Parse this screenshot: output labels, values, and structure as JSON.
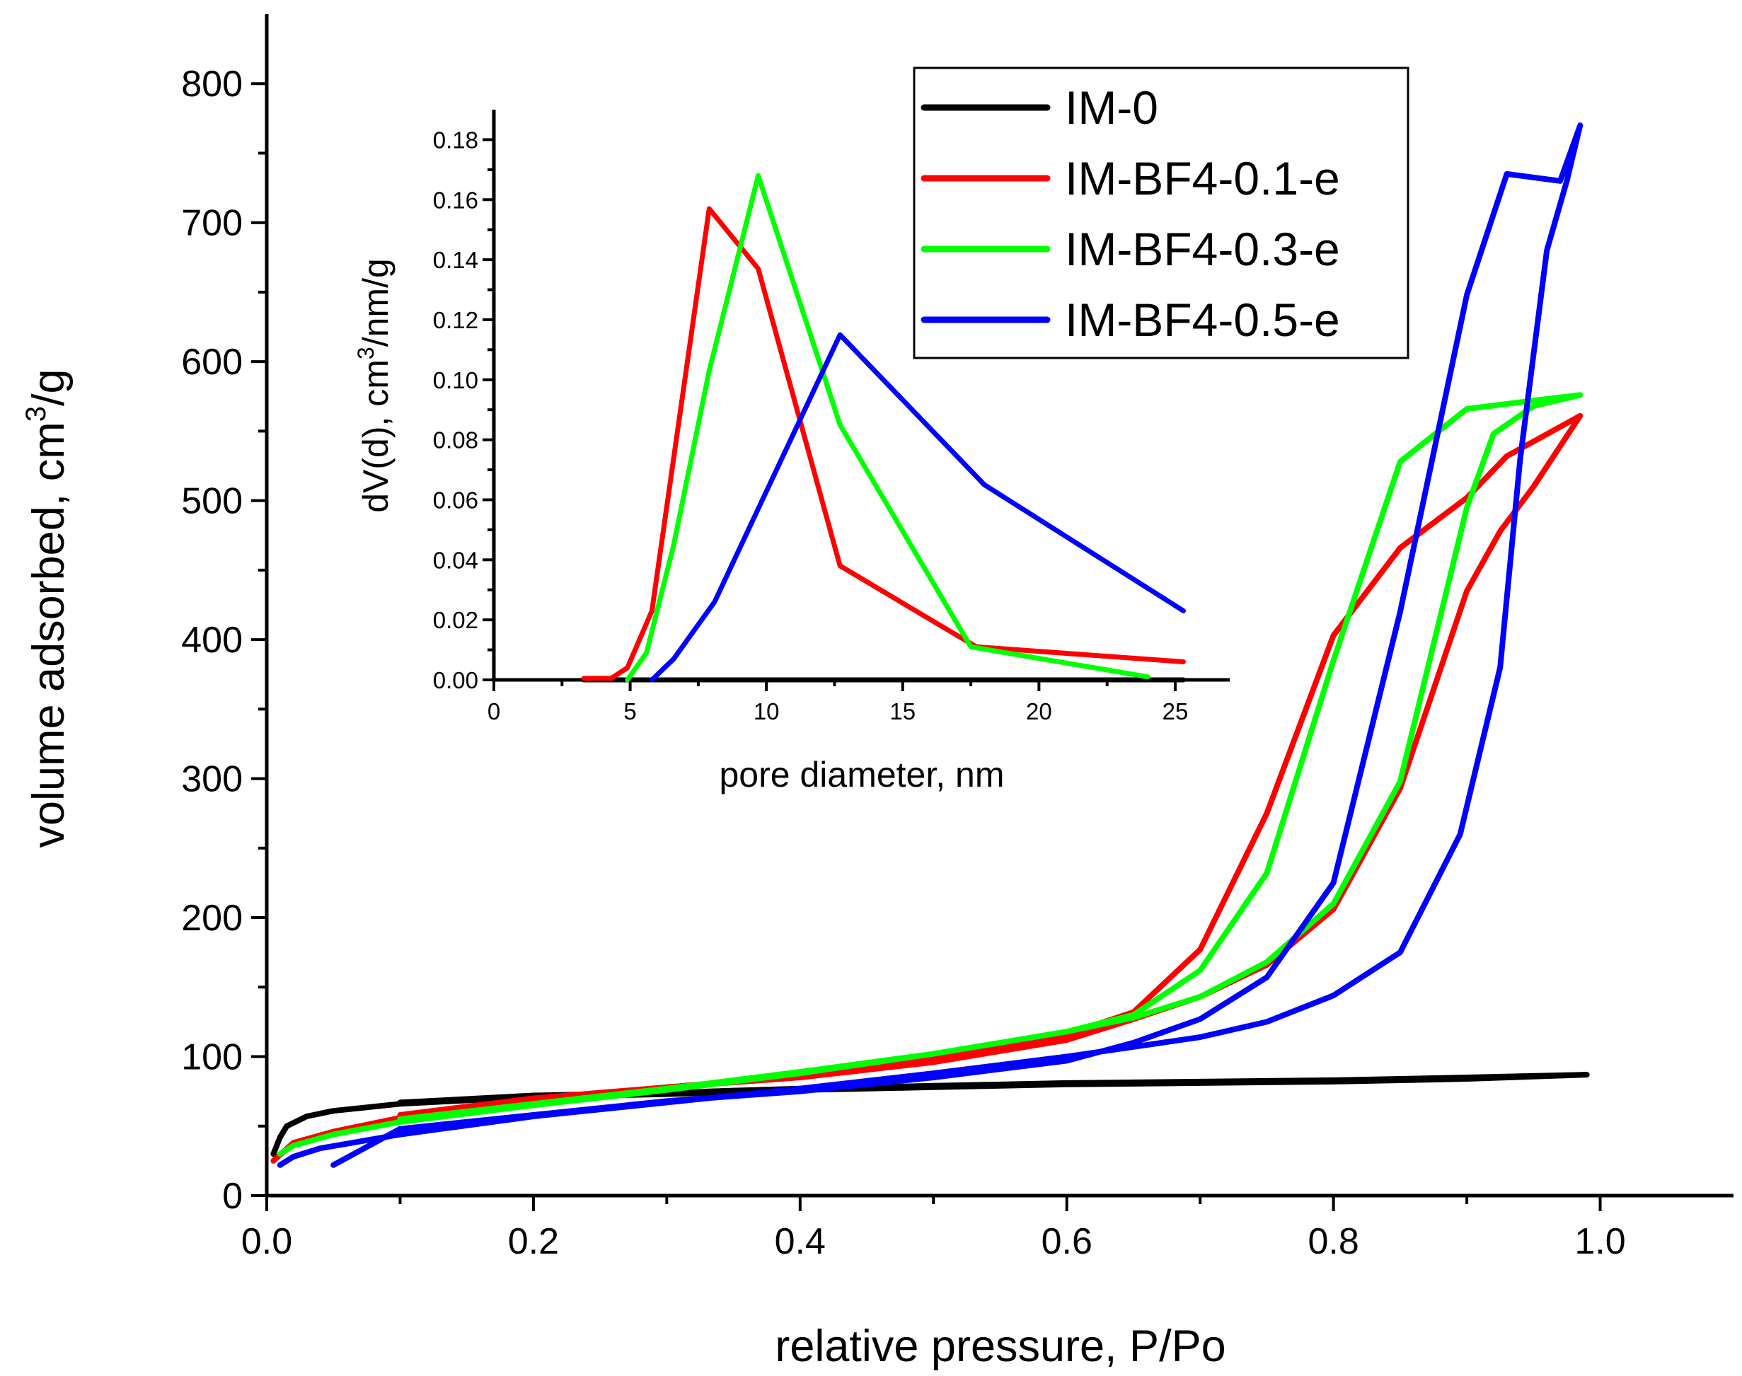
{
  "chart_data": [
    {
      "type": "line",
      "title": "",
      "xlabel": "relative pressure, P/Po",
      "ylabel_main": "volume adsorbed, cm",
      "ylabel_sup": "3",
      "ylabel_tail": "/g",
      "xlim": [
        0.0,
        1.1
      ],
      "ylim": [
        0,
        850
      ],
      "x_ticks": [
        0.0,
        0.2,
        0.4,
        0.6,
        0.8,
        1.0
      ],
      "x_tick_labels": [
        "0.0",
        "0.2",
        "0.4",
        "0.6",
        "0.8",
        "1.0"
      ],
      "y_ticks": [
        0,
        100,
        200,
        300,
        400,
        500,
        600,
        700,
        800
      ],
      "y_tick_labels": [
        "0",
        "100",
        "200",
        "300",
        "400",
        "500",
        "600",
        "700",
        "800"
      ],
      "legend_position": "top-right",
      "series": [
        {
          "name": "IM-0",
          "color": "#000000",
          "points": [
            [
              0.005,
              30
            ],
            [
              0.01,
              42
            ],
            [
              0.015,
              50
            ],
            [
              0.03,
              57
            ],
            [
              0.05,
              61
            ],
            [
              0.1,
              66
            ],
            [
              0.2,
              71
            ],
            [
              0.3,
              73
            ],
            [
              0.4,
              76
            ],
            [
              0.5,
              78
            ],
            [
              0.6,
              80
            ],
            [
              0.7,
              81
            ],
            [
              0.8,
              82
            ],
            [
              0.9,
              84
            ],
            [
              0.99,
              87
            ],
            [
              0.9,
              85
            ],
            [
              0.8,
              83
            ],
            [
              0.7,
              82
            ],
            [
              0.6,
              81
            ],
            [
              0.5,
              79
            ],
            [
              0.4,
              77
            ],
            [
              0.3,
              74
            ],
            [
              0.2,
              72
            ],
            [
              0.1,
              67
            ]
          ]
        },
        {
          "name": "IM-BF4-0.1-e",
          "color": "#ff0000",
          "points": [
            [
              0.005,
              25
            ],
            [
              0.02,
              38
            ],
            [
              0.05,
              46
            ],
            [
              0.1,
              56
            ],
            [
              0.2,
              68
            ],
            [
              0.3,
              78
            ],
            [
              0.4,
              85
            ],
            [
              0.5,
              96
            ],
            [
              0.6,
              112
            ],
            [
              0.65,
              127
            ],
            [
              0.7,
              143
            ],
            [
              0.75,
              166
            ],
            [
              0.8,
              206
            ],
            [
              0.85,
              293
            ],
            [
              0.9,
              435
            ],
            [
              0.925,
              478
            ],
            [
              0.95,
              510
            ],
            [
              0.985,
              561
            ],
            [
              0.93,
              532
            ],
            [
              0.9,
              502
            ],
            [
              0.85,
              466
            ],
            [
              0.8,
              403
            ],
            [
              0.75,
              275
            ],
            [
              0.7,
              177
            ],
            [
              0.65,
              132
            ],
            [
              0.6,
              116
            ],
            [
              0.5,
              98
            ],
            [
              0.4,
              86
            ],
            [
              0.3,
              78
            ],
            [
              0.2,
              70
            ],
            [
              0.1,
              58
            ]
          ]
        },
        {
          "name": "IM-BF4-0.3-e",
          "color": "#00ff00",
          "points": [
            [
              0.01,
              30
            ],
            [
              0.02,
              36
            ],
            [
              0.05,
              44
            ],
            [
              0.1,
              53
            ],
            [
              0.2,
              65
            ],
            [
              0.3,
              76
            ],
            [
              0.4,
              88
            ],
            [
              0.5,
              102
            ],
            [
              0.6,
              118
            ],
            [
              0.65,
              128
            ],
            [
              0.7,
              143
            ],
            [
              0.75,
              168
            ],
            [
              0.8,
              210
            ],
            [
              0.85,
              298
            ],
            [
              0.9,
              495
            ],
            [
              0.92,
              548
            ],
            [
              0.95,
              568
            ],
            [
              0.985,
              576
            ],
            [
              0.95,
              572
            ],
            [
              0.9,
              566
            ],
            [
              0.85,
              528
            ],
            [
              0.8,
              385
            ],
            [
              0.75,
              232
            ],
            [
              0.7,
              162
            ],
            [
              0.65,
              130
            ],
            [
              0.6,
              118
            ],
            [
              0.5,
              102
            ],
            [
              0.4,
              89
            ],
            [
              0.3,
              77
            ],
            [
              0.2,
              66
            ],
            [
              0.1,
              55
            ]
          ]
        },
        {
          "name": "IM-BF4-0.5-e",
          "color": "#0000ff",
          "points": [
            [
              0.01,
              22
            ],
            [
              0.02,
              28
            ],
            [
              0.04,
              34
            ],
            [
              0.1,
              44
            ],
            [
              0.2,
              57
            ],
            [
              0.3,
              67
            ],
            [
              0.4,
              77
            ],
            [
              0.5,
              88
            ],
            [
              0.6,
              100
            ],
            [
              0.65,
              107
            ],
            [
              0.7,
              114
            ],
            [
              0.75,
              125
            ],
            [
              0.8,
              144
            ],
            [
              0.85,
              175
            ],
            [
              0.895,
              260
            ],
            [
              0.925,
              380
            ],
            [
              0.94,
              530
            ],
            [
              0.96,
              680
            ],
            [
              0.975,
              730
            ],
            [
              0.985,
              770
            ],
            [
              0.97,
              730
            ],
            [
              0.93,
              735
            ],
            [
              0.9,
              648
            ],
            [
              0.85,
              420
            ],
            [
              0.8,
              225
            ],
            [
              0.75,
              157
            ],
            [
              0.7,
              127
            ],
            [
              0.65,
              110
            ],
            [
              0.6,
              97
            ],
            [
              0.5,
              85
            ],
            [
              0.4,
              75
            ],
            [
              0.3,
              68
            ],
            [
              0.2,
              58
            ],
            [
              0.1,
              48
            ],
            [
              0.05,
              22
            ]
          ]
        }
      ]
    },
    {
      "type": "line",
      "title": "",
      "xlabel": "pore diameter, nm",
      "ylabel_main": "dV(d), cm",
      "ylabel_sup": "3",
      "ylabel_tail": "/nm/g",
      "xlim": [
        0,
        27
      ],
      "ylim": [
        0,
        0.19
      ],
      "x_ticks": [
        0,
        5,
        10,
        15,
        20,
        25
      ],
      "x_tick_labels": [
        "0",
        "5",
        "10",
        "15",
        "20",
        "25"
      ],
      "y_ticks": [
        0.0,
        0.02,
        0.04,
        0.06,
        0.08,
        0.1,
        0.12,
        0.14,
        0.16,
        0.18
      ],
      "y_tick_labels": [
        "0.00",
        "0.02",
        "0.04",
        "0.06",
        "0.08",
        "0.10",
        "0.12",
        "0.14",
        "0.16",
        "0.18"
      ],
      "series": [
        {
          "name": "IM-0",
          "color": "#000000",
          "points": [
            [
              3.3,
              0.0
            ],
            [
              25.3,
              0.0
            ]
          ]
        },
        {
          "name": "IM-BF4-0.1-e",
          "color": "#ff0000",
          "points": [
            [
              3.3,
              0.0005
            ],
            [
              4.3,
              0.0005
            ],
            [
              4.9,
              0.004
            ],
            [
              5.8,
              0.023
            ],
            [
              7.9,
              0.157
            ],
            [
              9.7,
              0.137
            ],
            [
              12.7,
              0.038
            ],
            [
              17.7,
              0.011
            ],
            [
              25.3,
              0.006
            ]
          ]
        },
        {
          "name": "IM-BF4-0.3-e",
          "color": "#00ff00",
          "points": [
            [
              4.9,
              0.0
            ],
            [
              5.6,
              0.009
            ],
            [
              6.6,
              0.045
            ],
            [
              7.9,
              0.103
            ],
            [
              9.7,
              0.168
            ],
            [
              12.7,
              0.085
            ],
            [
              17.5,
              0.011
            ],
            [
              24.0,
              0.001
            ]
          ]
        },
        {
          "name": "IM-BF4-0.5-e",
          "color": "#0000ff",
          "points": [
            [
              5.8,
              0.0
            ],
            [
              6.6,
              0.007
            ],
            [
              8.1,
              0.026
            ],
            [
              9.7,
              0.057
            ],
            [
              12.7,
              0.115
            ],
            [
              18.0,
              0.065
            ],
            [
              25.3,
              0.023
            ]
          ]
        }
      ]
    }
  ]
}
